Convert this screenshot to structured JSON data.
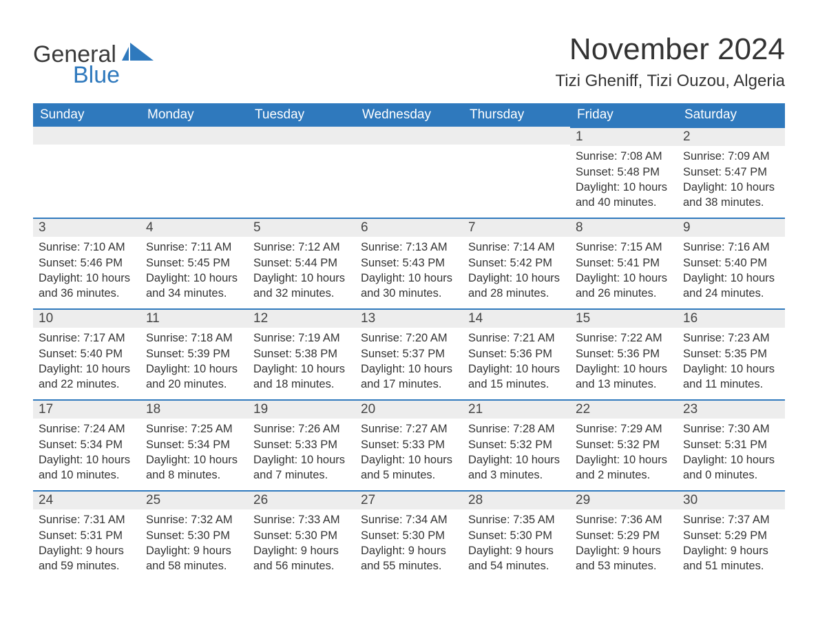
{
  "brand": {
    "word1": "General",
    "word2": "Blue",
    "color_text": "#3a3a3a",
    "color_accent": "#2f79bd"
  },
  "title": "November 2024",
  "location": "Tizi Gheniff, Tizi Ouzou, Algeria",
  "colors": {
    "header_bg": "#2f79bd",
    "header_text": "#ffffff",
    "daynum_bg": "#ededed",
    "daynum_border": "#2f79bd",
    "body_text": "#333333",
    "page_bg": "#ffffff"
  },
  "typography": {
    "title_fontsize": 44,
    "location_fontsize": 24,
    "weekday_fontsize": 19,
    "daynum_fontsize": 19,
    "body_fontsize": 16.5,
    "font_family": "Arial"
  },
  "weekdays": [
    "Sunday",
    "Monday",
    "Tuesday",
    "Wednesday",
    "Thursday",
    "Friday",
    "Saturday"
  ],
  "weeks": [
    [
      {
        "blank": true
      },
      {
        "blank": true
      },
      {
        "blank": true
      },
      {
        "blank": true
      },
      {
        "blank": true
      },
      {
        "num": "1",
        "sunrise": "Sunrise: 7:08 AM",
        "sunset": "Sunset: 5:48 PM",
        "daylight": "Daylight: 10 hours and 40 minutes."
      },
      {
        "num": "2",
        "sunrise": "Sunrise: 7:09 AM",
        "sunset": "Sunset: 5:47 PM",
        "daylight": "Daylight: 10 hours and 38 minutes."
      }
    ],
    [
      {
        "num": "3",
        "sunrise": "Sunrise: 7:10 AM",
        "sunset": "Sunset: 5:46 PM",
        "daylight": "Daylight: 10 hours and 36 minutes."
      },
      {
        "num": "4",
        "sunrise": "Sunrise: 7:11 AM",
        "sunset": "Sunset: 5:45 PM",
        "daylight": "Daylight: 10 hours and 34 minutes."
      },
      {
        "num": "5",
        "sunrise": "Sunrise: 7:12 AM",
        "sunset": "Sunset: 5:44 PM",
        "daylight": "Daylight: 10 hours and 32 minutes."
      },
      {
        "num": "6",
        "sunrise": "Sunrise: 7:13 AM",
        "sunset": "Sunset: 5:43 PM",
        "daylight": "Daylight: 10 hours and 30 minutes."
      },
      {
        "num": "7",
        "sunrise": "Sunrise: 7:14 AM",
        "sunset": "Sunset: 5:42 PM",
        "daylight": "Daylight: 10 hours and 28 minutes."
      },
      {
        "num": "8",
        "sunrise": "Sunrise: 7:15 AM",
        "sunset": "Sunset: 5:41 PM",
        "daylight": "Daylight: 10 hours and 26 minutes."
      },
      {
        "num": "9",
        "sunrise": "Sunrise: 7:16 AM",
        "sunset": "Sunset: 5:40 PM",
        "daylight": "Daylight: 10 hours and 24 minutes."
      }
    ],
    [
      {
        "num": "10",
        "sunrise": "Sunrise: 7:17 AM",
        "sunset": "Sunset: 5:40 PM",
        "daylight": "Daylight: 10 hours and 22 minutes."
      },
      {
        "num": "11",
        "sunrise": "Sunrise: 7:18 AM",
        "sunset": "Sunset: 5:39 PM",
        "daylight": "Daylight: 10 hours and 20 minutes."
      },
      {
        "num": "12",
        "sunrise": "Sunrise: 7:19 AM",
        "sunset": "Sunset: 5:38 PM",
        "daylight": "Daylight: 10 hours and 18 minutes."
      },
      {
        "num": "13",
        "sunrise": "Sunrise: 7:20 AM",
        "sunset": "Sunset: 5:37 PM",
        "daylight": "Daylight: 10 hours and 17 minutes."
      },
      {
        "num": "14",
        "sunrise": "Sunrise: 7:21 AM",
        "sunset": "Sunset: 5:36 PM",
        "daylight": "Daylight: 10 hours and 15 minutes."
      },
      {
        "num": "15",
        "sunrise": "Sunrise: 7:22 AM",
        "sunset": "Sunset: 5:36 PM",
        "daylight": "Daylight: 10 hours and 13 minutes."
      },
      {
        "num": "16",
        "sunrise": "Sunrise: 7:23 AM",
        "sunset": "Sunset: 5:35 PM",
        "daylight": "Daylight: 10 hours and 11 minutes."
      }
    ],
    [
      {
        "num": "17",
        "sunrise": "Sunrise: 7:24 AM",
        "sunset": "Sunset: 5:34 PM",
        "daylight": "Daylight: 10 hours and 10 minutes."
      },
      {
        "num": "18",
        "sunrise": "Sunrise: 7:25 AM",
        "sunset": "Sunset: 5:34 PM",
        "daylight": "Daylight: 10 hours and 8 minutes."
      },
      {
        "num": "19",
        "sunrise": "Sunrise: 7:26 AM",
        "sunset": "Sunset: 5:33 PM",
        "daylight": "Daylight: 10 hours and 7 minutes."
      },
      {
        "num": "20",
        "sunrise": "Sunrise: 7:27 AM",
        "sunset": "Sunset: 5:33 PM",
        "daylight": "Daylight: 10 hours and 5 minutes."
      },
      {
        "num": "21",
        "sunrise": "Sunrise: 7:28 AM",
        "sunset": "Sunset: 5:32 PM",
        "daylight": "Daylight: 10 hours and 3 minutes."
      },
      {
        "num": "22",
        "sunrise": "Sunrise: 7:29 AM",
        "sunset": "Sunset: 5:32 PM",
        "daylight": "Daylight: 10 hours and 2 minutes."
      },
      {
        "num": "23",
        "sunrise": "Sunrise: 7:30 AM",
        "sunset": "Sunset: 5:31 PM",
        "daylight": "Daylight: 10 hours and 0 minutes."
      }
    ],
    [
      {
        "num": "24",
        "sunrise": "Sunrise: 7:31 AM",
        "sunset": "Sunset: 5:31 PM",
        "daylight": "Daylight: 9 hours and 59 minutes."
      },
      {
        "num": "25",
        "sunrise": "Sunrise: 7:32 AM",
        "sunset": "Sunset: 5:30 PM",
        "daylight": "Daylight: 9 hours and 58 minutes."
      },
      {
        "num": "26",
        "sunrise": "Sunrise: 7:33 AM",
        "sunset": "Sunset: 5:30 PM",
        "daylight": "Daylight: 9 hours and 56 minutes."
      },
      {
        "num": "27",
        "sunrise": "Sunrise: 7:34 AM",
        "sunset": "Sunset: 5:30 PM",
        "daylight": "Daylight: 9 hours and 55 minutes."
      },
      {
        "num": "28",
        "sunrise": "Sunrise: 7:35 AM",
        "sunset": "Sunset: 5:30 PM",
        "daylight": "Daylight: 9 hours and 54 minutes."
      },
      {
        "num": "29",
        "sunrise": "Sunrise: 7:36 AM",
        "sunset": "Sunset: 5:29 PM",
        "daylight": "Daylight: 9 hours and 53 minutes."
      },
      {
        "num": "30",
        "sunrise": "Sunrise: 7:37 AM",
        "sunset": "Sunset: 5:29 PM",
        "daylight": "Daylight: 9 hours and 51 minutes."
      }
    ]
  ]
}
